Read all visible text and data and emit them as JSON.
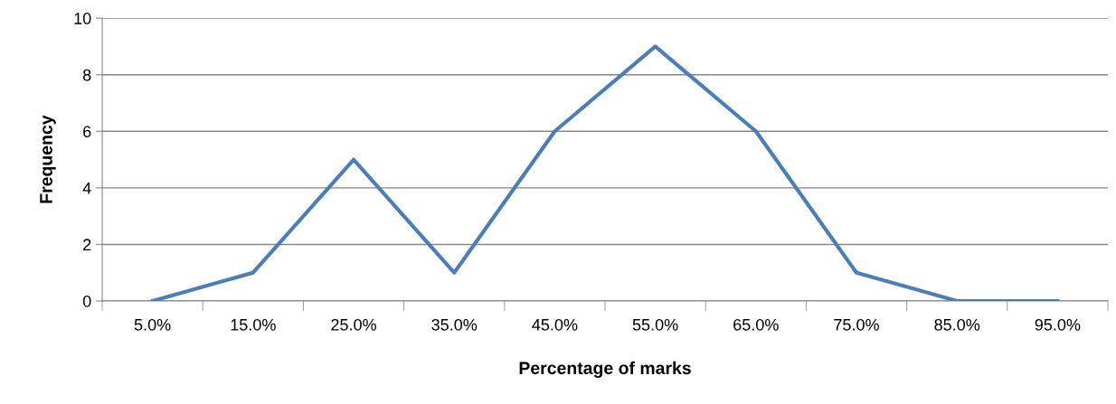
{
  "chart_data": {
    "type": "line",
    "xlabel": "Percentage of marks",
    "ylabel": "Frequency",
    "categories": [
      "5.0%",
      "15.0%",
      "25.0%",
      "35.0%",
      "45.0%",
      "55.0%",
      "65.0%",
      "75.0%",
      "85.0%",
      "95.0%"
    ],
    "series": [
      {
        "color": "#4a7ebb",
        "values": [
          0,
          1,
          5,
          1,
          6,
          9,
          6,
          1,
          0,
          0
        ]
      }
    ],
    "ylim": [
      0,
      10
    ],
    "yticks": [
      0,
      2,
      4,
      6,
      8,
      10
    ],
    "grid": "y",
    "marker": "none",
    "line_style": "solid"
  }
}
